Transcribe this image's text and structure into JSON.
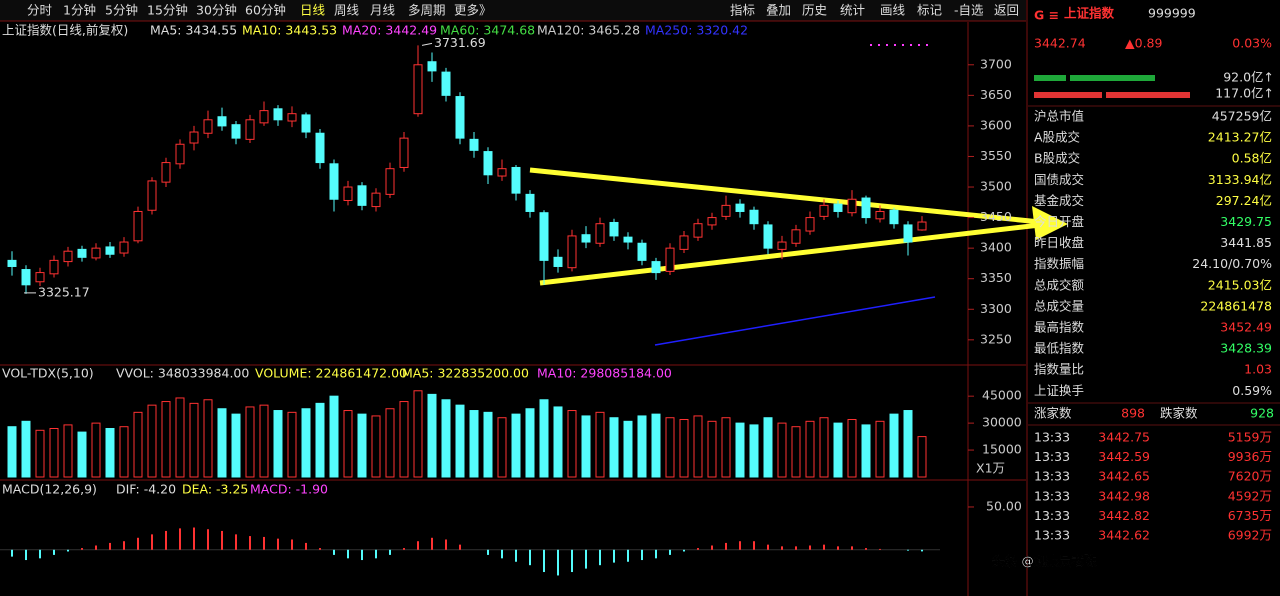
{
  "toolbar": {
    "tabs": [
      "分时",
      "1分钟",
      "5分钟",
      "15分钟",
      "30分钟",
      "60分钟",
      "日线",
      "周线",
      "月线",
      "多周期",
      "更多》"
    ],
    "tools": [
      "指标",
      "叠加",
      "历史",
      "统计",
      "画线",
      "标记",
      "-自选",
      "返回"
    ]
  },
  "price_panel": {
    "header": [
      "上证指数(日线,前复权)",
      "MA5: 3434.55",
      "MA10: 3443.53",
      "MA20: 3442.49",
      "MA60: 3474.68",
      "MA120: 3465.28",
      "MA250: 3320.42"
    ],
    "ylim": [
      3217,
      3770
    ],
    "yticks": [
      3250,
      3300,
      3350,
      3400,
      3450,
      3500,
      3550,
      3600,
      3650,
      3700
    ],
    "high_label": "3731.69",
    "low_label": "3325.17",
    "candles": [
      [
        3380,
        3395,
        3355,
        3370
      ],
      [
        3365,
        3372,
        3325.17,
        3340
      ],
      [
        3345,
        3368,
        3338,
        3360
      ],
      [
        3358,
        3388,
        3352,
        3380
      ],
      [
        3378,
        3402,
        3370,
        3395
      ],
      [
        3398,
        3404,
        3378,
        3385
      ],
      [
        3384,
        3408,
        3380,
        3400
      ],
      [
        3402,
        3410,
        3384,
        3390
      ],
      [
        3392,
        3418,
        3386,
        3410
      ],
      [
        3412,
        3468,
        3408,
        3460
      ],
      [
        3462,
        3516,
        3455,
        3510
      ],
      [
        3508,
        3548,
        3500,
        3540
      ],
      [
        3538,
        3578,
        3530,
        3570
      ],
      [
        3572,
        3600,
        3560,
        3590
      ],
      [
        3588,
        3625,
        3580,
        3610
      ],
      [
        3615,
        3630,
        3592,
        3600
      ],
      [
        3602,
        3608,
        3570,
        3580
      ],
      [
        3578,
        3618,
        3572,
        3610
      ],
      [
        3605,
        3640,
        3600,
        3625
      ],
      [
        3628,
        3634,
        3600,
        3610
      ],
      [
        3608,
        3632,
        3598,
        3620
      ],
      [
        3618,
        3622,
        3580,
        3590
      ],
      [
        3588,
        3595,
        3530,
        3540
      ],
      [
        3538,
        3545,
        3460,
        3480
      ],
      [
        3478,
        3510,
        3470,
        3500
      ],
      [
        3502,
        3508,
        3462,
        3470
      ],
      [
        3468,
        3498,
        3460,
        3490
      ],
      [
        3488,
        3540,
        3482,
        3530
      ],
      [
        3532,
        3590,
        3525,
        3580
      ],
      [
        3620,
        3731.69,
        3615,
        3700
      ],
      [
        3705,
        3720,
        3672,
        3690
      ],
      [
        3688,
        3695,
        3640,
        3650
      ],
      [
        3648,
        3655,
        3570,
        3580
      ],
      [
        3578,
        3590,
        3548,
        3560
      ],
      [
        3558,
        3565,
        3505,
        3520
      ],
      [
        3518,
        3545,
        3510,
        3530
      ],
      [
        3532,
        3536,
        3478,
        3490
      ],
      [
        3488,
        3495,
        3450,
        3460
      ],
      [
        3458,
        3462,
        3340,
        3380
      ],
      [
        3385,
        3398,
        3360,
        3370
      ],
      [
        3368,
        3430,
        3362,
        3420
      ],
      [
        3422,
        3436,
        3400,
        3410
      ],
      [
        3408,
        3450,
        3402,
        3440
      ],
      [
        3442,
        3448,
        3412,
        3420
      ],
      [
        3418,
        3426,
        3398,
        3410
      ],
      [
        3408,
        3414,
        3372,
        3380
      ],
      [
        3378,
        3384,
        3348,
        3360
      ],
      [
        3362,
        3408,
        3356,
        3400
      ],
      [
        3398,
        3428,
        3392,
        3420
      ],
      [
        3418,
        3448,
        3412,
        3440
      ],
      [
        3438,
        3458,
        3430,
        3450
      ],
      [
        3452,
        3486,
        3446,
        3470
      ],
      [
        3472,
        3480,
        3450,
        3460
      ],
      [
        3462,
        3468,
        3430,
        3440
      ],
      [
        3438,
        3444,
        3390,
        3400
      ],
      [
        3398,
        3420,
        3382,
        3410
      ],
      [
        3408,
        3438,
        3402,
        3430
      ],
      [
        3428,
        3460,
        3422,
        3450
      ],
      [
        3452,
        3480,
        3446,
        3470
      ],
      [
        3472,
        3478,
        3450,
        3460
      ],
      [
        3458,
        3495,
        3452,
        3480
      ],
      [
        3482,
        3486,
        3440,
        3450
      ],
      [
        3448,
        3470,
        3442,
        3460
      ],
      [
        3462,
        3466,
        3432,
        3440
      ],
      [
        3438,
        3444,
        3388,
        3410
      ],
      [
        3429.75,
        3452.49,
        3428.39,
        3442.74
      ]
    ]
  },
  "volume_panel": {
    "header": [
      "VOL-TDX(5,10)",
      "VVOL: 348033984.00",
      "VOLUME: 224861472.00",
      "MA5: 322835200.00",
      "MA10: 298085184.00"
    ],
    "unit": "X1万",
    "ylim": [
      0,
      54000
    ],
    "yticks": [
      15000,
      30000,
      45000
    ],
    "values": [
      28000,
      31000,
      26000,
      27000,
      29000,
      25000,
      30000,
      27000,
      28000,
      36000,
      40000,
      42000,
      44000,
      41000,
      43000,
      38000,
      35000,
      39000,
      40000,
      37000,
      36000,
      38000,
      41000,
      45000,
      37000,
      35000,
      34000,
      38000,
      42000,
      48000,
      46000,
      43000,
      40000,
      37000,
      36000,
      33000,
      35000,
      38000,
      43000,
      39000,
      37000,
      34000,
      36000,
      33000,
      31000,
      34000,
      35000,
      33000,
      32000,
      34000,
      31000,
      33000,
      30000,
      29000,
      33000,
      30000,
      28000,
      31000,
      33000,
      30000,
      32000,
      29000,
      31000,
      35000,
      37000,
      22486
    ]
  },
  "macd_panel": {
    "header": [
      "MACD(12,26,9)",
      "DIF: -4.20",
      "DEA: -3.25",
      "MACD: -1.90"
    ],
    "ylim": [
      -54,
      78
    ],
    "yticks": [
      {
        "value": 50,
        "label": "50.00"
      }
    ],
    "values": [
      -8,
      -12,
      -10,
      -6,
      -2,
      2,
      5,
      8,
      10,
      14,
      18,
      22,
      25,
      26,
      24,
      22,
      18,
      16,
      15,
      13,
      12,
      8,
      2,
      -6,
      -10,
      -12,
      -10,
      -6,
      2,
      10,
      14,
      12,
      6,
      0,
      -6,
      -10,
      -14,
      -18,
      -26,
      -30,
      -26,
      -22,
      -18,
      -15,
      -14,
      -12,
      -10,
      -6,
      -2,
      2,
      5,
      8,
      10,
      10,
      6,
      4,
      4,
      5,
      6,
      4,
      4,
      2,
      1,
      0,
      -1,
      -1.9
    ]
  },
  "side": {
    "title": "上证指数",
    "code": "999999",
    "price": "3442.74",
    "change": "▲0.89",
    "pct": "0.03%",
    "flows": [
      "92.0亿↑",
      "117.0亿↑"
    ],
    "stats": [
      [
        "沪总市值",
        "457259亿"
      ],
      [
        "A股成交",
        "2413.27亿"
      ],
      [
        "B股成交",
        "0.58亿"
      ],
      [
        "国债成交",
        "3133.94亿"
      ],
      [
        "基金成交",
        "297.24亿"
      ],
      [
        "今日开盘",
        "3429.75"
      ],
      [
        "昨日收盘",
        "3441.85"
      ],
      [
        "指数振幅",
        "24.10/0.70%"
      ],
      [
        "总成交额",
        "2415.03亿"
      ],
      [
        "总成交量",
        "224861478"
      ],
      [
        "最高指数",
        "3452.49"
      ],
      [
        "最低指数",
        "3428.39"
      ],
      [
        "指数量比",
        "1.03"
      ],
      [
        "上证换手",
        "0.59%"
      ]
    ],
    "counts": [
      "涨家数",
      "898",
      "跌家数",
      "928"
    ],
    "ticks": [
      [
        "13:33",
        "3442.75",
        "5159万"
      ],
      [
        "13:33",
        "3442.59",
        "9936万"
      ],
      [
        "13:33",
        "3442.65",
        "7620万"
      ],
      [
        "13:33",
        "3442.98",
        "4592万"
      ],
      [
        "13:33",
        "3442.82",
        "6735万"
      ],
      [
        "13:33",
        "3442.62",
        "6992万"
      ]
    ]
  },
  "watermark": "头条 @观察员老陈"
}
